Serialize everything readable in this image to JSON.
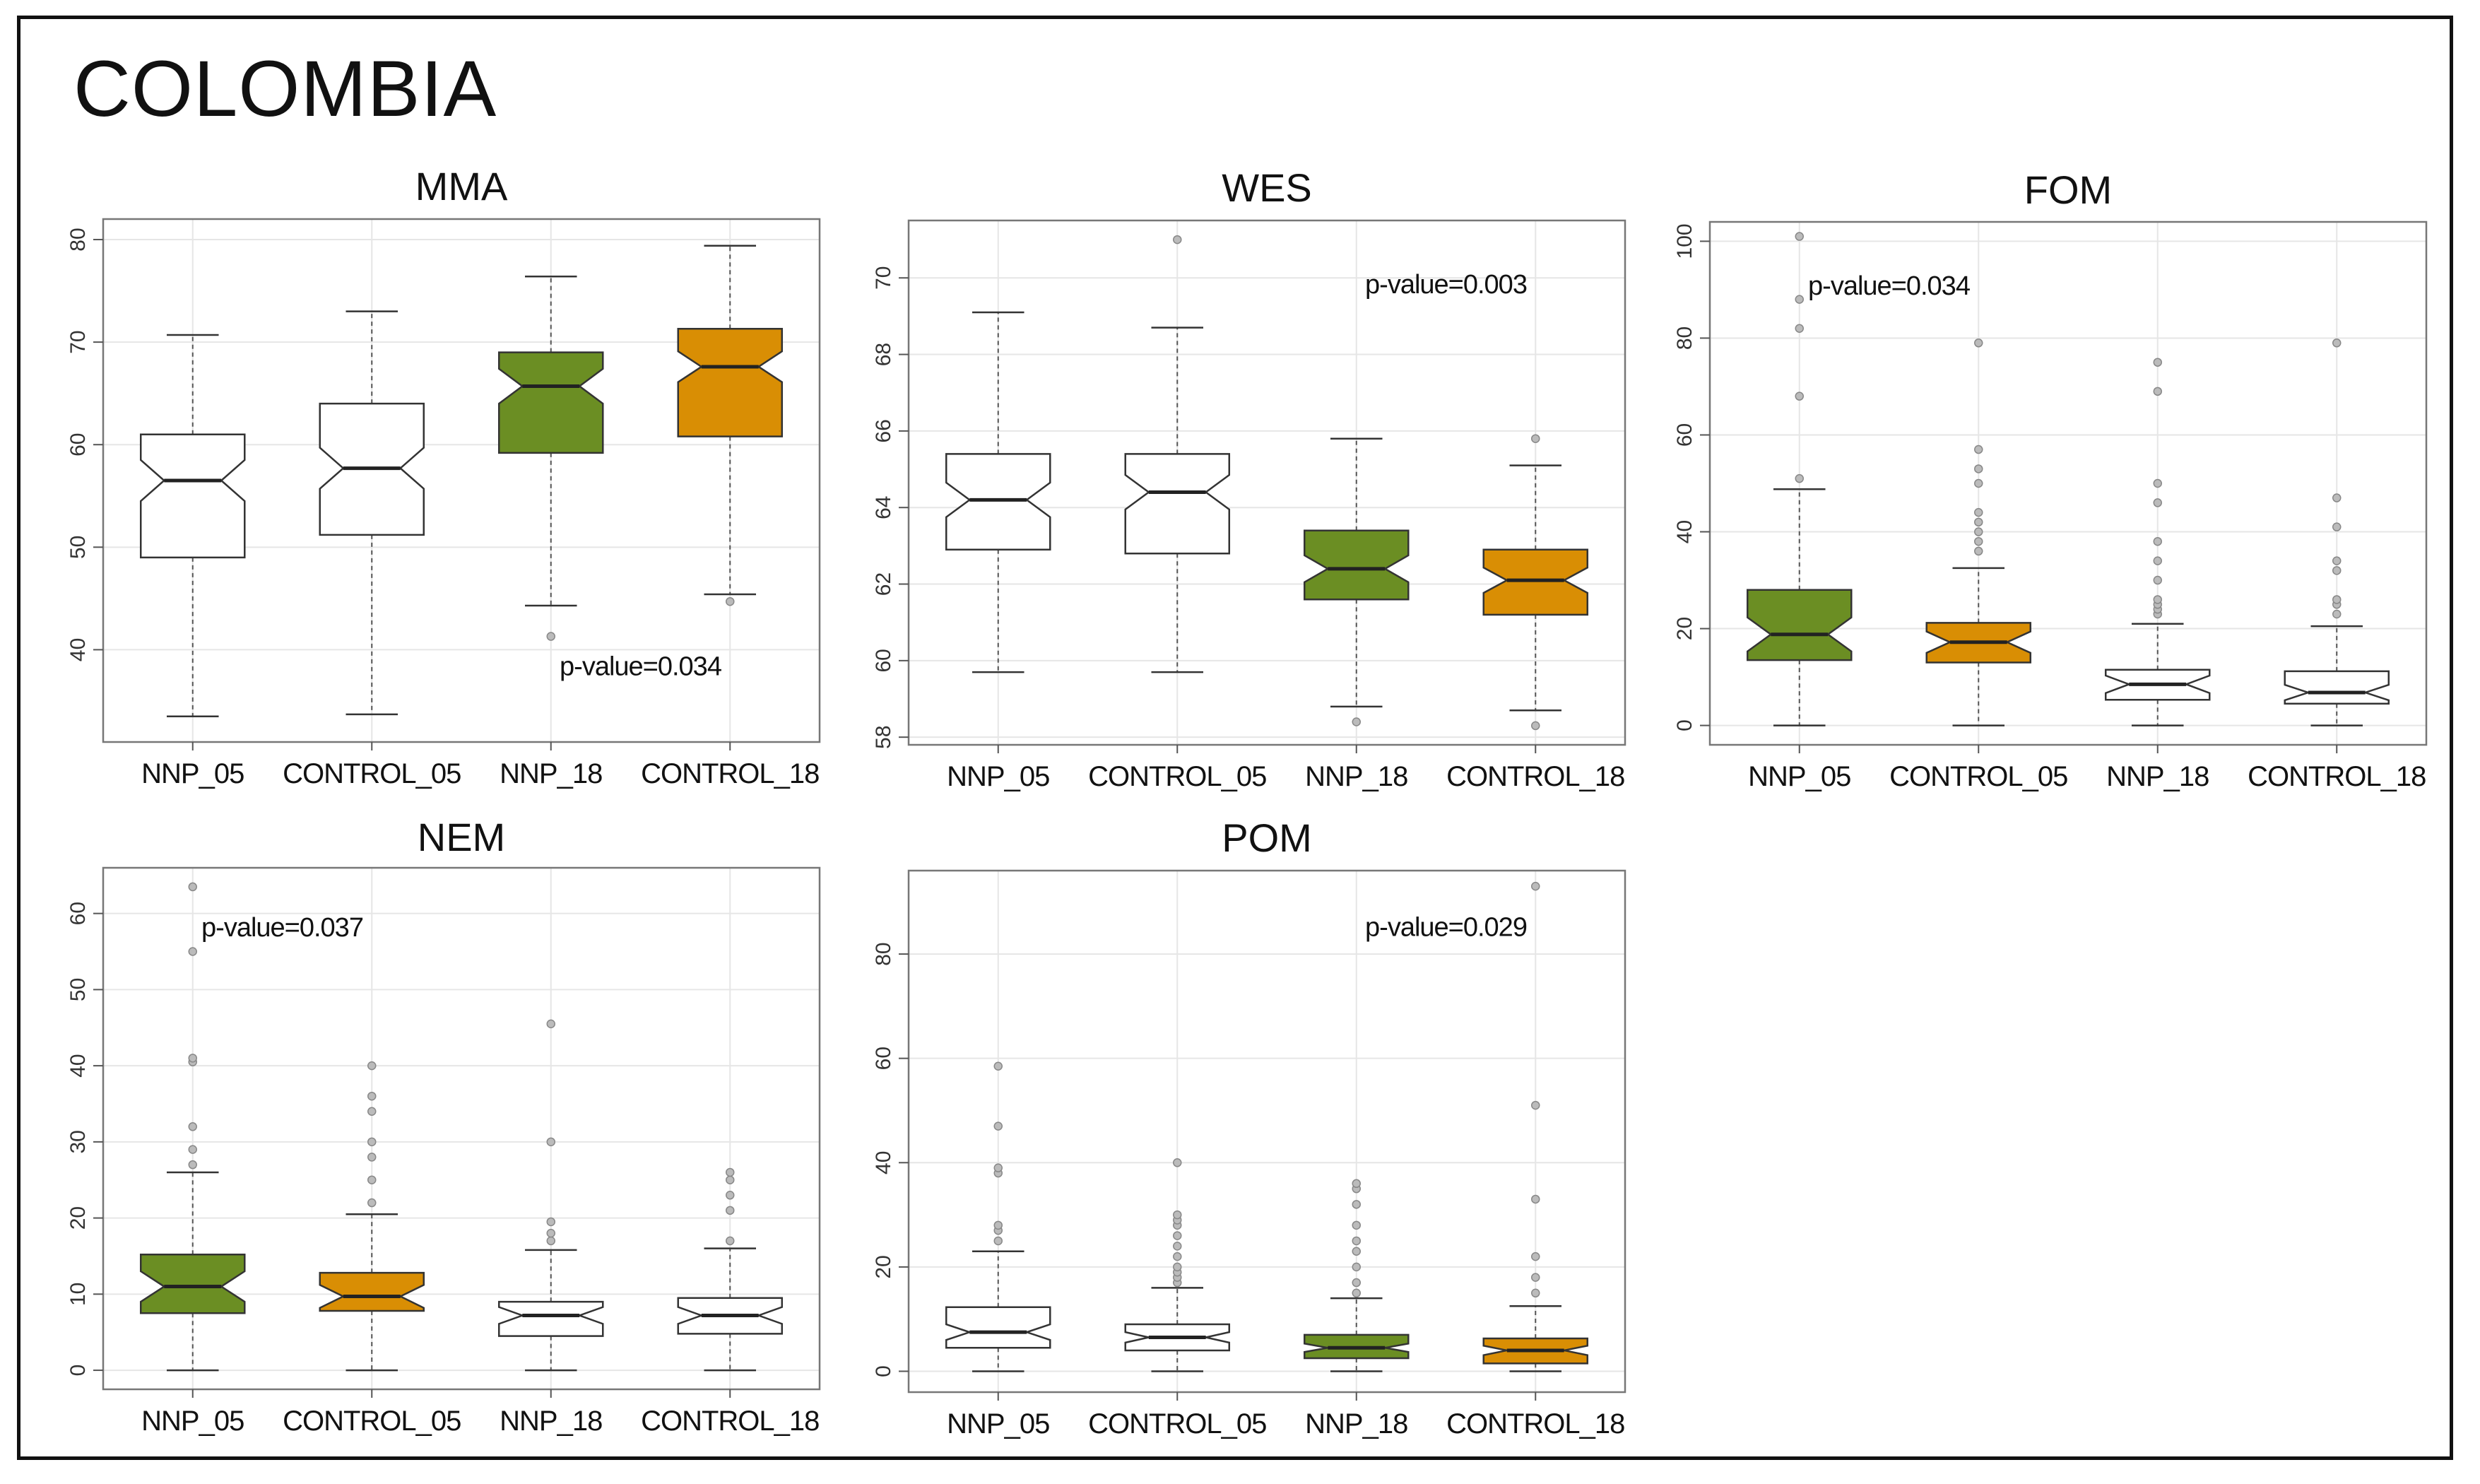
{
  "page": {
    "title": "COLOMBIA"
  },
  "colors": {
    "white": "#ffffff",
    "nnp18_green": "#6b8e23",
    "control18_orange": "#d98e04",
    "median": "#222222",
    "grid": "#e6e6e6"
  },
  "chart_data": [
    {
      "id": "mma",
      "type": "boxplot",
      "title": "MMA",
      "categories": [
        "NNP_05",
        "CONTROL_05",
        "NNP_18",
        "CONTROL_18"
      ],
      "ylim": [
        31,
        82
      ],
      "yticks": [
        40,
        50,
        60,
        70,
        80
      ],
      "annotation": {
        "text": "p-value=0.034",
        "x": 3.5,
        "y": 37.5
      },
      "boxes": [
        {
          "fill": "white",
          "min": 33.5,
          "q1": 49,
          "median": 56.5,
          "q3": 61,
          "max": 70.7,
          "notch": 2,
          "outliers": []
        },
        {
          "fill": "white",
          "min": 33.7,
          "q1": 51.2,
          "median": 57.7,
          "q3": 64,
          "max": 73,
          "notch": 2,
          "outliers": []
        },
        {
          "fill": "green",
          "min": 44.3,
          "q1": 59.2,
          "median": 65.7,
          "q3": 69,
          "max": 76.4,
          "notch": 1.7,
          "outliers": [
            41.3
          ]
        },
        {
          "fill": "orange",
          "min": 45.4,
          "q1": 60.8,
          "median": 67.6,
          "q3": 71.3,
          "max": 79.4,
          "notch": 1.5,
          "outliers": [
            44.7
          ]
        }
      ]
    },
    {
      "id": "wes",
      "type": "boxplot",
      "title": "WES",
      "categories": [
        "NNP_05",
        "CONTROL_05",
        "NNP_18",
        "CONTROL_18"
      ],
      "ylim": [
        57.8,
        71.5
      ],
      "yticks": [
        58,
        60,
        62,
        64,
        66,
        68,
        70
      ],
      "annotation": {
        "text": "p-value=0.003",
        "x": 3.5,
        "y": 69.6
      },
      "boxes": [
        {
          "fill": "white",
          "min": 59.7,
          "q1": 62.9,
          "median": 64.2,
          "q3": 65.4,
          "max": 69.1,
          "notch": 0.45,
          "outliers": []
        },
        {
          "fill": "white",
          "min": 59.7,
          "q1": 62.8,
          "median": 64.4,
          "q3": 65.4,
          "max": 68.7,
          "notch": 0.45,
          "outliers": [
            71
          ]
        },
        {
          "fill": "green",
          "min": 58.8,
          "q1": 61.6,
          "median": 62.4,
          "q3": 63.4,
          "max": 65.8,
          "notch": 0.35,
          "outliers": [
            58.4
          ]
        },
        {
          "fill": "orange",
          "min": 58.7,
          "q1": 61.2,
          "median": 62.1,
          "q3": 62.9,
          "max": 65.1,
          "notch": 0.33,
          "outliers": [
            58.3,
            65.8
          ]
        }
      ]
    },
    {
      "id": "fom",
      "type": "boxplot",
      "title": "FOM",
      "categories": [
        "NNP_05",
        "CONTROL_05",
        "NNP_18",
        "CONTROL_18"
      ],
      "ylim": [
        -4,
        104
      ],
      "yticks": [
        0,
        20,
        40,
        60,
        80,
        100
      ],
      "annotation": {
        "text": "p-value=0.034",
        "x": 1.5,
        "y": 89
      },
      "boxes": [
        {
          "fill": "green",
          "min": 0,
          "q1": 13.5,
          "median": 18.8,
          "q3": 28,
          "max": 48.8,
          "notch": 3.5,
          "outliers": [
            51,
            68,
            82,
            88,
            101
          ]
        },
        {
          "fill": "orange",
          "min": 0,
          "q1": 13,
          "median": 17.2,
          "q3": 21.2,
          "max": 32.5,
          "notch": 2.2,
          "outliers": [
            36,
            38,
            40,
            42,
            44,
            50,
            53,
            57,
            79
          ]
        },
        {
          "fill": "white",
          "min": 0,
          "q1": 5.3,
          "median": 8.5,
          "q3": 11.5,
          "max": 21,
          "notch": 1.8,
          "outliers": [
            23,
            24,
            25,
            26,
            30,
            34,
            38,
            46,
            50,
            69,
            75
          ]
        },
        {
          "fill": "white",
          "min": 0,
          "q1": 4.5,
          "median": 6.8,
          "q3": 11.2,
          "max": 20.5,
          "notch": 1.6,
          "outliers": [
            23,
            25,
            26,
            32,
            34,
            41,
            47,
            79
          ]
        }
      ]
    },
    {
      "id": "nem",
      "type": "boxplot",
      "title": "NEM",
      "categories": [
        "NNP_05",
        "CONTROL_05",
        "NNP_18",
        "CONTROL_18"
      ],
      "ylim": [
        -2.5,
        66
      ],
      "yticks": [
        0,
        10,
        20,
        30,
        40,
        50,
        60
      ],
      "annotation": {
        "text": "p-value=0.037",
        "x": 1.5,
        "y": 57
      },
      "boxes": [
        {
          "fill": "green",
          "min": 0,
          "q1": 7.5,
          "median": 11,
          "q3": 15.2,
          "max": 26,
          "notch": 2,
          "outliers": [
            27,
            29,
            32,
            40.5,
            41,
            55,
            63.5
          ]
        },
        {
          "fill": "orange",
          "min": 0,
          "q1": 7.8,
          "median": 9.7,
          "q3": 12.8,
          "max": 20.5,
          "notch": 1.5,
          "outliers": [
            22,
            25,
            28,
            30,
            34,
            36,
            40
          ]
        },
        {
          "fill": "white",
          "min": 0,
          "q1": 4.5,
          "median": 7.2,
          "q3": 9,
          "max": 15.8,
          "notch": 1.1,
          "outliers": [
            17,
            18,
            19.5,
            30,
            45.5
          ]
        },
        {
          "fill": "white",
          "min": 0,
          "q1": 4.8,
          "median": 7.2,
          "q3": 9.5,
          "max": 16,
          "notch": 1.1,
          "outliers": [
            17,
            21,
            23,
            25,
            26
          ]
        }
      ]
    },
    {
      "id": "pom",
      "type": "boxplot",
      "title": "POM",
      "categories": [
        "NNP_05",
        "CONTROL_05",
        "NNP_18",
        "CONTROL_18"
      ],
      "ylim": [
        -4,
        96
      ],
      "yticks": [
        0,
        20,
        40,
        60,
        80
      ],
      "annotation": {
        "text": "p-value=0.029",
        "x": 3.5,
        "y": 83.5
      },
      "boxes": [
        {
          "fill": "white",
          "min": 0,
          "q1": 4.5,
          "median": 7.5,
          "q3": 12.3,
          "max": 23,
          "notch": 1.5,
          "outliers": [
            25,
            27,
            28,
            38,
            39,
            47,
            58.5
          ]
        },
        {
          "fill": "white",
          "min": 0,
          "q1": 4,
          "median": 6.5,
          "q3": 9,
          "max": 16,
          "notch": 1,
          "outliers": [
            17,
            18,
            19,
            20,
            22,
            24,
            26,
            28,
            29,
            30,
            40
          ]
        },
        {
          "fill": "green",
          "min": 0,
          "q1": 2.5,
          "median": 4.5,
          "q3": 7,
          "max": 14,
          "notch": 0.8,
          "outliers": [
            15,
            17,
            20,
            23,
            25,
            28,
            32,
            35,
            36
          ]
        },
        {
          "fill": "orange",
          "min": 0,
          "q1": 1.5,
          "median": 4,
          "q3": 6.3,
          "max": 12.5,
          "notch": 0.9,
          "outliers": [
            15,
            18,
            22,
            33,
            51,
            93
          ]
        }
      ]
    }
  ]
}
